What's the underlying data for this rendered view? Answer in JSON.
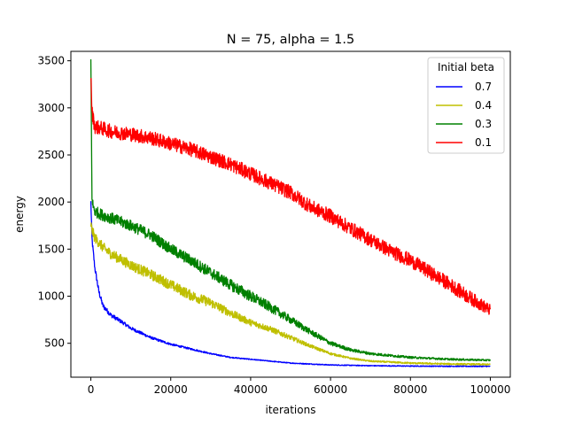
{
  "chart_data": {
    "type": "line",
    "title": "N = 75, alpha = 1.5",
    "xlabel": "iterations",
    "ylabel": "energy",
    "xlim": [
      -5000,
      105000
    ],
    "ylim": [
      140,
      3600
    ],
    "xticks": [
      0,
      20000,
      40000,
      60000,
      80000,
      100000
    ],
    "xtick_labels": [
      "0",
      "20000",
      "40000",
      "60000",
      "80000",
      "100000"
    ],
    "yticks": [
      500,
      1000,
      1500,
      2000,
      2500,
      3000,
      3500
    ],
    "ytick_labels": [
      "500",
      "1000",
      "1500",
      "2000",
      "2500",
      "3000",
      "3500"
    ],
    "grid": false,
    "legend": {
      "title": "Initial beta",
      "placement": "top-right"
    },
    "series": [
      {
        "name": "0.7",
        "color": "#0000ff",
        "noise": 30,
        "x": [
          0,
          300,
          1000,
          2000,
          3000,
          5000,
          8000,
          10000,
          15000,
          20000,
          25000,
          30000,
          35000,
          40000,
          45000,
          50000,
          60000,
          70000,
          80000,
          90000,
          100000
        ],
        "y": [
          2000,
          1600,
          1300,
          1050,
          900,
          800,
          720,
          660,
          560,
          490,
          440,
          390,
          350,
          330,
          310,
          290,
          270,
          262,
          258,
          256,
          255
        ]
      },
      {
        "name": "0.4",
        "color": "#bfbf00",
        "noise": 55,
        "x": [
          0,
          300,
          1000,
          3000,
          5000,
          10000,
          15000,
          20000,
          25000,
          30000,
          35000,
          40000,
          45000,
          50000,
          55000,
          60000,
          65000,
          70000,
          80000,
          90000,
          100000
        ],
        "y": [
          1760,
          1700,
          1620,
          1520,
          1450,
          1330,
          1230,
          1120,
          1010,
          930,
          820,
          720,
          650,
          560,
          470,
          390,
          340,
          310,
          290,
          280,
          275
        ]
      },
      {
        "name": "0.3",
        "color": "#008000",
        "noise": 60,
        "x": [
          0,
          300,
          1000,
          3000,
          5000,
          10000,
          15000,
          20000,
          25000,
          30000,
          35000,
          40000,
          45000,
          50000,
          55000,
          60000,
          65000,
          70000,
          75000,
          80000,
          90000,
          100000
        ],
        "y": [
          3500,
          2000,
          1900,
          1860,
          1830,
          1750,
          1650,
          1500,
          1380,
          1250,
          1120,
          1000,
          880,
          750,
          620,
          500,
          430,
          390,
          370,
          350,
          330,
          320
        ]
      },
      {
        "name": "0.1",
        "color": "#ff0000",
        "noise": 75,
        "x": [
          0,
          300,
          1000,
          3000,
          5000,
          10000,
          15000,
          20000,
          25000,
          30000,
          35000,
          40000,
          45000,
          50000,
          55000,
          60000,
          65000,
          70000,
          75000,
          80000,
          85000,
          90000,
          95000,
          100000
        ],
        "y": [
          3350,
          2950,
          2800,
          2780,
          2750,
          2720,
          2680,
          2620,
          2560,
          2480,
          2400,
          2300,
          2200,
          2100,
          1950,
          1850,
          1720,
          1600,
          1480,
          1380,
          1250,
          1120,
          980,
          850
        ]
      }
    ]
  }
}
